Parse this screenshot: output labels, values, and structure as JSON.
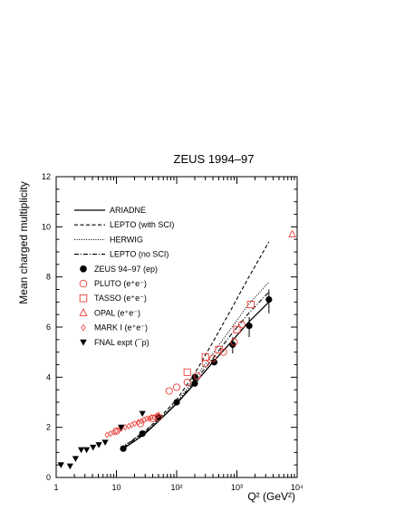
{
  "chart_data": {
    "type": "scatter",
    "title": "ZEUS 1994–97",
    "ylabel": "Mean charged multiplicity",
    "xlabel": "Q² (GeV²)",
    "xscale": "log",
    "xlim": [
      1,
      10000
    ],
    "ylim": [
      0,
      12
    ],
    "x_tick_labels": [
      {
        "value": 1,
        "label": "1"
      },
      {
        "value": 10,
        "label": "10"
      },
      {
        "value": 100,
        "label": "10²"
      },
      {
        "value": 1000,
        "label": "10³"
      },
      {
        "value": 10000,
        "label": "10⁴"
      }
    ],
    "y_ticks": [
      0,
      2,
      4,
      6,
      8,
      10,
      12
    ],
    "legend_position": "top-left",
    "curves": [
      {
        "name": "ARIADNE",
        "style": "solid",
        "color": "#000000",
        "x": [
          13,
          20,
          30,
          50,
          100,
          200,
          400,
          800,
          1500,
          3400
        ],
        "y": [
          1.15,
          1.45,
          1.75,
          2.25,
          2.95,
          3.75,
          4.6,
          5.4,
          6.15,
          7.0
        ]
      },
      {
        "name": "LEPTO (with SCI)",
        "style": "dashed",
        "color": "#000000",
        "x": [
          13,
          20,
          30,
          50,
          100,
          200,
          400,
          800,
          1500,
          3400
        ],
        "y": [
          1.2,
          1.55,
          1.85,
          2.35,
          3.1,
          4.15,
          5.4,
          6.7,
          7.9,
          9.4
        ]
      },
      {
        "name": "HERWIG",
        "style": "dotted",
        "color": "#000000",
        "x": [
          13,
          20,
          30,
          50,
          100,
          200,
          400,
          800,
          1500,
          3400
        ],
        "y": [
          1.25,
          1.55,
          1.85,
          2.3,
          3.0,
          3.95,
          4.95,
          5.95,
          6.85,
          7.8
        ]
      },
      {
        "name": "LEPTO (no SCI)",
        "style": "dash-dot",
        "color": "#000000",
        "x": [
          13,
          20,
          30,
          50,
          100,
          200,
          400,
          800,
          1500,
          3400
        ],
        "y": [
          1.2,
          1.5,
          1.8,
          2.25,
          2.95,
          3.85,
          4.75,
          5.7,
          6.5,
          7.4
        ]
      }
    ],
    "series": [
      {
        "name": "ZEUS 94–97 (ep)",
        "marker": "filled-circle",
        "color": "#000000",
        "x": [
          13,
          27,
          50,
          100,
          200,
          200,
          420,
          850,
          1600,
          3400
        ],
        "y": [
          1.15,
          1.75,
          2.4,
          3.0,
          3.75,
          4.0,
          4.6,
          5.3,
          6.05,
          7.1
        ]
      },
      {
        "name": "PLUTO (e⁺e⁻)",
        "marker": "open-circle",
        "color": "#e8413a",
        "x": [
          10,
          25,
          40,
          50,
          75,
          100,
          150,
          220,
          300,
          400,
          600,
          900,
          1200
        ],
        "y": [
          1.85,
          2.15,
          2.35,
          2.4,
          3.45,
          3.6,
          3.8,
          4.05,
          4.55,
          4.75,
          5.0,
          5.4,
          6.1
        ]
      },
      {
        "name": "TASSO (e⁺e⁻)",
        "marker": "open-square",
        "color": "#e8413a",
        "x": [
          150,
          300,
          500,
          1000,
          1700
        ],
        "y": [
          4.2,
          4.8,
          5.1,
          5.9,
          6.9
        ]
      },
      {
        "name": "OPAL (e⁺e⁻)",
        "marker": "open-triangle",
        "color": "#e8413a",
        "x": [
          8300
        ],
        "y": [
          9.7
        ]
      },
      {
        "name": "MARK I (e⁺e⁻)",
        "marker": "open-diamond",
        "color": "#e8413a",
        "x": [
          7,
          8,
          9,
          10,
          11,
          12,
          14,
          16,
          18,
          20,
          23,
          26,
          29,
          32,
          35,
          38,
          42,
          46,
          50
        ],
        "y": [
          1.7,
          1.75,
          1.8,
          1.85,
          1.9,
          1.95,
          2.0,
          2.05,
          2.1,
          2.15,
          2.2,
          2.25,
          2.3,
          2.35,
          2.35,
          2.4,
          2.4,
          2.45,
          2.5
        ]
      },
      {
        "name": "FNAL expt (¯p)",
        "marker": "filled-triangle-down",
        "color": "#000000",
        "x": [
          1.2,
          1.7,
          2.1,
          2.6,
          3.2,
          4.1,
          5.1,
          6.5,
          12,
          27
        ],
        "y": [
          0.5,
          0.45,
          0.75,
          1.1,
          1.1,
          1.2,
          1.3,
          1.4,
          2.0,
          2.55
        ]
      }
    ],
    "error_bars": [
      {
        "x": 850,
        "low": 4.95,
        "high": 5.6
      },
      {
        "x": 1600,
        "low": 5.6,
        "high": 6.4
      },
      {
        "x": 3400,
        "low": 6.55,
        "high": 7.5
      }
    ]
  }
}
